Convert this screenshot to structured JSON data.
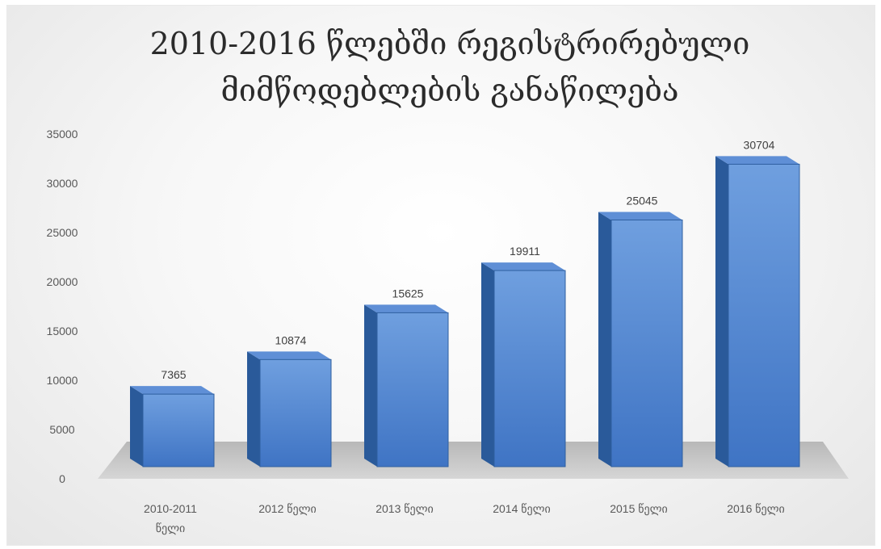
{
  "chart_data": {
    "type": "bar",
    "title_lines": [
      "2010-2016 წლებში რეგისტრირებული",
      "მიმწოდებლების განაწილება"
    ],
    "categories": [
      [
        "2010-2011",
        "წელი"
      ],
      [
        "2012 წელი"
      ],
      [
        "2013 წელი"
      ],
      [
        "2014 წელი"
      ],
      [
        "2015 წელი"
      ],
      [
        "2016 წელი"
      ]
    ],
    "values": [
      7365,
      10874,
      15625,
      19911,
      25045,
      30704
    ],
    "data_labels": [
      "7365",
      "10874",
      "15625",
      "19911",
      "25045",
      "30704"
    ],
    "y_ticks": [
      "0",
      "5000",
      "10000",
      "15000",
      "20000",
      "25000",
      "30000",
      "35000"
    ],
    "ylim": [
      0,
      35000
    ],
    "grid": false,
    "legend": "none",
    "style": "3d-column",
    "colors": {
      "bar_front_top": "#6f9fdf",
      "bar_front_bottom": "#3f74c4",
      "bar_side": "#2a5a9a",
      "bar_top": "#5f8fd6",
      "floor": "#c4c4c4"
    }
  }
}
